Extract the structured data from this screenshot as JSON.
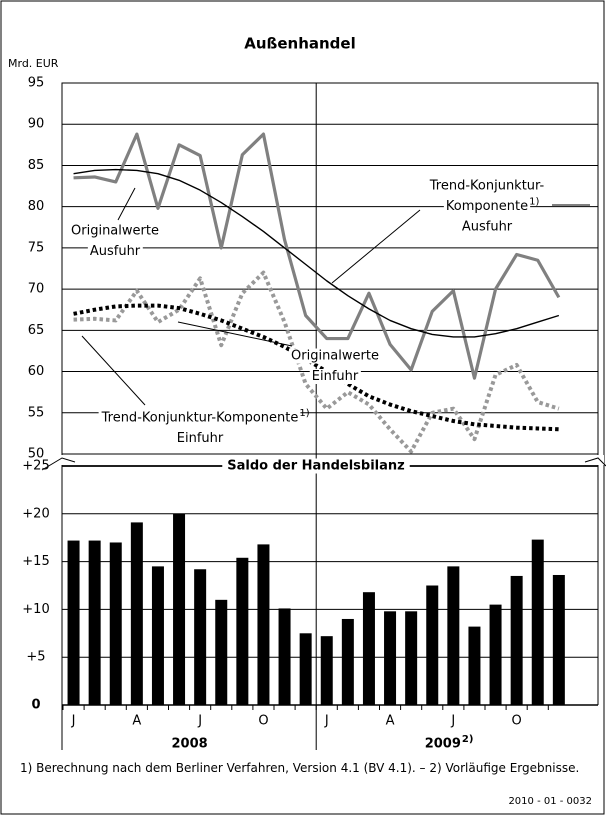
{
  "chart_data": [
    {
      "type": "line",
      "title": "Außenhandel",
      "y_label": "Mrd. EUR",
      "categories": [
        "J",
        null,
        null,
        "A",
        null,
        null,
        "J",
        null,
        null,
        "O",
        null,
        null,
        "J",
        null,
        null,
        "A",
        null,
        null,
        "J",
        null,
        null,
        "O",
        null,
        null
      ],
      "years": [
        "2008",
        "2009"
      ],
      "year_note": "2)",
      "ylim": [
        50,
        95
      ],
      "yticks": [
        50,
        55,
        60,
        65,
        70,
        75,
        80,
        85,
        90,
        95
      ],
      "grid": true,
      "series": [
        {
          "label_lines": [
            "Originalwerte",
            "Ausfuhr"
          ],
          "color": "#808080",
          "style": "solid",
          "values": [
            83.5,
            83.6,
            83,
            88.8,
            79.8,
            87.5,
            86.2,
            75,
            86.3,
            88.8,
            76,
            66.8,
            64,
            64,
            69.5,
            63.3,
            60.2,
            67.3,
            69.8,
            59.2,
            70,
            74.2,
            73.5,
            69
          ]
        },
        {
          "label_lines": [
            "Trend-Konjunktur-",
            "Komponente",
            "Ausfuhr"
          ],
          "note": "1)",
          "color": "#000000",
          "style": "thin",
          "values": [
            84,
            84.4,
            84.5,
            84.4,
            84,
            83.2,
            82,
            80.5,
            78.8,
            77,
            75,
            73,
            71,
            69.2,
            67.6,
            66.2,
            65.2,
            64.5,
            64.2,
            64.2,
            64.6,
            65.2,
            66,
            66.8
          ]
        },
        {
          "label_lines": [
            "Originalwerte",
            "Einfuhr"
          ],
          "color": "#999999",
          "style": "dotted",
          "values": [
            66.3,
            66.4,
            66.2,
            69.8,
            66,
            67.5,
            71.3,
            63.2,
            69.5,
            72,
            66,
            58.5,
            55.5,
            57.5,
            56,
            53,
            50.3,
            55,
            55.5,
            51.8,
            59.6,
            60.8,
            56.3,
            55.5
          ]
        },
        {
          "label_lines": [
            "Trend-Konjunktur-Komponente",
            "Einfuhr"
          ],
          "note": "1)",
          "color": "#000000",
          "style": "dotted",
          "values": [
            67,
            67.5,
            67.9,
            68,
            68,
            67.7,
            67,
            66.2,
            65.2,
            64.2,
            63,
            61.5,
            60,
            58.5,
            57,
            56,
            55.2,
            54.6,
            54,
            53.6,
            53.4,
            53.2,
            53.1,
            53
          ]
        }
      ]
    },
    {
      "type": "bar",
      "title": "Saldo der Handelsbilanz",
      "color": "#000000",
      "ylim": [
        0,
        25
      ],
      "yticks": [
        0,
        {
          "value": 5,
          "label": "+5"
        },
        {
          "value": 10,
          "label": "+10"
        },
        {
          "value": 15,
          "label": "+15"
        },
        {
          "value": 20,
          "label": "+20"
        },
        {
          "value": 25,
          "label": "+25"
        }
      ],
      "grid": true,
      "values": [
        17.2,
        17.2,
        17,
        19.1,
        14.5,
        20,
        14.2,
        11,
        15.4,
        16.8,
        10.1,
        7.5,
        7.2,
        9,
        11.8,
        9.8,
        9.8,
        12.5,
        14.5,
        8.2,
        10.5,
        13.5,
        17.3,
        13.6
      ]
    }
  ],
  "footnote": "1) Berechnung nach dem Berliner Verfahren, Version 4.1 (BV 4.1). – 2) Vorläufige Ergebnisse.",
  "code": "2010 - 01 - 0032"
}
